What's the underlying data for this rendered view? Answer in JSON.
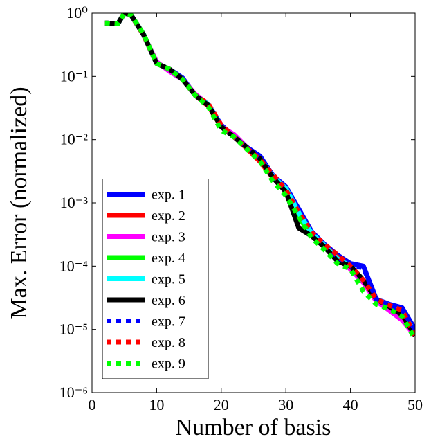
{
  "chart_data": {
    "type": "line",
    "x_label": "Number of basis",
    "y_label": "Max. Error (normalized)",
    "log_y": true,
    "xlim": [
      0,
      50
    ],
    "xticks": [
      0,
      10,
      20,
      30,
      40,
      50
    ],
    "ylim": [
      1e-06,
      1
    ],
    "yticks": [
      {
        "value": 1e-06,
        "label": "10⁻⁶"
      },
      {
        "value": 1e-05,
        "label": "10⁻⁵"
      },
      {
        "value": 0.0001,
        "label": "10⁻⁴"
      },
      {
        "value": 0.001,
        "label": "10⁻³"
      },
      {
        "value": 0.01,
        "label": "10⁻²"
      },
      {
        "value": 0.1,
        "label": "10⁻¹"
      },
      {
        "value": 1,
        "label": "10⁰"
      }
    ],
    "legend_position": "lower left",
    "x": [
      2,
      4,
      5,
      6,
      8,
      10,
      12,
      14,
      16,
      18,
      20,
      22,
      24,
      26,
      28,
      30,
      32,
      34,
      36,
      38,
      40,
      42,
      44,
      46,
      48,
      50
    ],
    "series": [
      {
        "name": "exp. 1",
        "color": "#0000ff",
        "linestyle": "solid",
        "values": [
          0.7,
          0.68,
          1.0,
          0.95,
          0.46,
          0.16,
          0.13,
          0.095,
          0.05,
          0.036,
          0.017,
          0.011,
          0.0075,
          0.0055,
          0.0027,
          0.0018,
          0.0008,
          0.00035,
          0.00022,
          0.00015,
          0.00011,
          0.0001,
          3e-05,
          2.5e-05,
          2.2e-05,
          1e-05
        ]
      },
      {
        "name": "exp. 2",
        "color": "#ff0000",
        "linestyle": "solid",
        "values": [
          0.7,
          0.68,
          1.0,
          0.95,
          0.45,
          0.16,
          0.13,
          0.09,
          0.05,
          0.034,
          0.016,
          0.011,
          0.0072,
          0.0045,
          0.0025,
          0.0016,
          0.0007,
          0.00032,
          0.00021,
          0.00014,
          9e-05,
          6e-05,
          2.8e-05,
          2.2e-05,
          1.8e-05,
          8e-06
        ]
      },
      {
        "name": "exp. 3",
        "color": "#ff00ff",
        "linestyle": "solid",
        "values": [
          0.7,
          0.68,
          1.0,
          0.95,
          0.45,
          0.17,
          0.12,
          0.09,
          0.052,
          0.036,
          0.016,
          0.012,
          0.0075,
          0.005,
          0.0026,
          0.0015,
          0.0007,
          0.0003,
          0.0002,
          0.00013,
          9e-05,
          5.5e-05,
          2.8e-05,
          2e-05,
          1.4e-05,
          8e-06
        ]
      },
      {
        "name": "exp. 4",
        "color": "#00ff00",
        "linestyle": "solid",
        "values": [
          0.7,
          0.68,
          1.0,
          0.95,
          0.46,
          0.16,
          0.13,
          0.09,
          0.05,
          0.035,
          0.016,
          0.011,
          0.0074,
          0.005,
          0.0025,
          0.0015,
          0.0006,
          0.0003,
          0.0002,
          0.00012,
          0.0001,
          6e-05,
          3e-05,
          2.3e-05,
          1.7e-05,
          9e-06
        ]
      },
      {
        "name": "exp. 5",
        "color": "#00ffff",
        "linestyle": "solid",
        "values": [
          0.7,
          0.68,
          1.0,
          0.95,
          0.45,
          0.16,
          0.13,
          0.09,
          0.05,
          0.036,
          0.016,
          0.011,
          0.0075,
          0.005,
          0.0026,
          0.0017,
          0.0007,
          0.00033,
          0.00021,
          0.00013,
          0.0001,
          6e-05,
          3e-05,
          2.4e-05,
          1.8e-05,
          9e-06
        ]
      },
      {
        "name": "exp. 6",
        "color": "#000000",
        "linestyle": "solid",
        "values": [
          0.7,
          0.68,
          1.0,
          0.95,
          0.45,
          0.16,
          0.13,
          0.09,
          0.05,
          0.035,
          0.016,
          0.011,
          0.0075,
          0.005,
          0.0025,
          0.0015,
          0.0004,
          0.0003,
          0.0002,
          0.00012,
          0.0001,
          6e-05,
          3e-05,
          2.3e-05,
          1.7e-05,
          8e-06
        ]
      },
      {
        "name": "exp. 7",
        "color": "#0000ff",
        "linestyle": "dotted",
        "values": [
          0.7,
          0.68,
          1.0,
          0.95,
          0.45,
          0.16,
          0.13,
          0.09,
          0.05,
          0.035,
          0.017,
          0.011,
          0.0075,
          0.0052,
          0.0027,
          0.0016,
          0.0007,
          0.00035,
          0.00022,
          0.00014,
          0.0001,
          9.5e-05,
          3e-05,
          2.4e-05,
          2e-05,
          1e-05
        ]
      },
      {
        "name": "exp. 8",
        "color": "#ff0000",
        "linestyle": "dotted",
        "values": [
          0.7,
          0.68,
          1.0,
          0.95,
          0.45,
          0.16,
          0.13,
          0.09,
          0.05,
          0.037,
          0.017,
          0.011,
          0.0073,
          0.0048,
          0.0028,
          0.0016,
          0.0007,
          0.00034,
          0.00022,
          0.00015,
          0.0001,
          6e-05,
          3e-05,
          2.4e-05,
          2e-05,
          8e-06
        ]
      },
      {
        "name": "exp. 9",
        "color": "#00ff00",
        "linestyle": "dotted",
        "values": [
          0.7,
          0.68,
          1.0,
          0.95,
          0.46,
          0.16,
          0.13,
          0.09,
          0.05,
          0.033,
          0.014,
          0.011,
          0.007,
          0.0045,
          0.0022,
          0.0013,
          0.0006,
          0.00028,
          0.00018,
          0.00011,
          9e-05,
          4e-05,
          2.5e-05,
          2.1e-05,
          1.6e-05,
          7e-06
        ]
      }
    ]
  }
}
